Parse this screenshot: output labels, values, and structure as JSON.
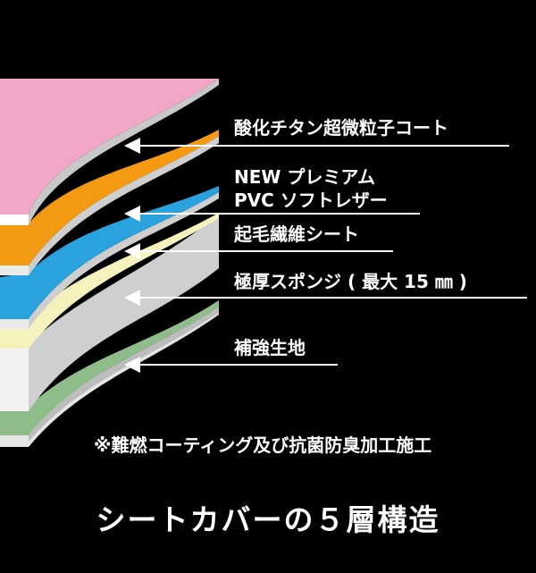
{
  "labels": {
    "coat": "酸化チタン超微粒子コート",
    "pvc_line1": "NEW プレミアム",
    "pvc_line2": "PVC ソフトレザー",
    "brushed": "起毛繊維シート",
    "sponge": "極厚スポンジ ( 最大 15 ㎜ )",
    "reinforce": "補強生地"
  },
  "note": "※難燃コーティング及び抗菌防臭加工施工",
  "title": "シートカバーの５層構造",
  "colors": {
    "background": "#000000",
    "coat": "#f2a6c8",
    "pvc": "#f39a12",
    "brushed_top": "#29a2de",
    "fleece": "#f6f2bd",
    "sponge": "#cfcfcf",
    "reinforce": "#8fbd8a"
  }
}
